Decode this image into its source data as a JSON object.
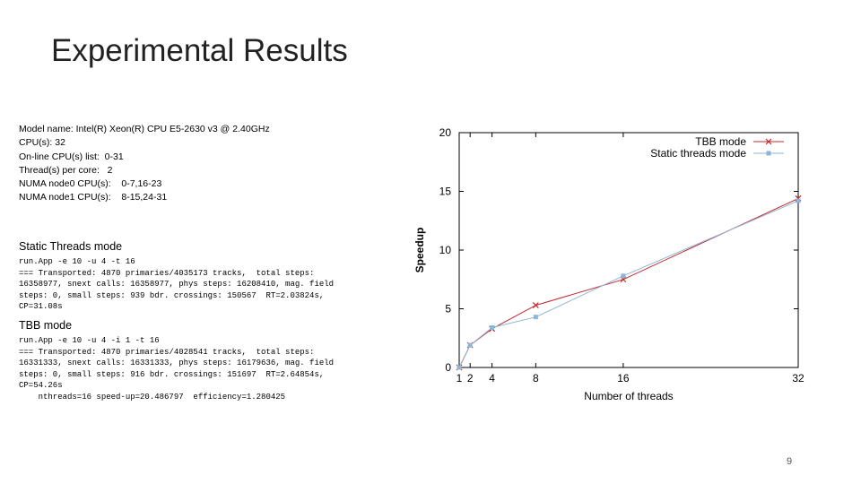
{
  "slide": {
    "title": "Experimental Results",
    "page_number": "9"
  },
  "specs": [
    "Model name: Intel(R) Xeon(R) CPU E5-2630 v3 @ 2.40GHz",
    "CPU(s): 32",
    "On-line CPU(s) list:  0-31",
    "Thread(s) per core:   2",
    "NUMA node0 CPU(s):    0-7,16-23",
    "NUMA node1 CPU(s):    8-15,24-31"
  ],
  "static_mode": {
    "heading": "Static Threads mode",
    "lines": [
      "run.App -e 10 -u 4 -t 16",
      "=== Transported: 4870 primaries/4035173 tracks,  total steps:",
      "16358977, snext calls: 16358977, phys steps: 16208410, mag. field",
      "steps: 0, small steps: 939 bdr. crossings: 150567  RT=2.03824s,",
      "CP=31.08s"
    ]
  },
  "tbb_mode": {
    "heading": "TBB mode",
    "lines": [
      "run.App -e 10 -u 4 -i 1 -t 16",
      "=== Transported: 4870 primaries/4028541 tracks,  total steps:",
      "16331333, snext calls: 16331333, phys steps: 16179636, mag. field",
      "steps: 0, small steps: 916 bdr. crossings: 151697  RT=2.64854s,",
      "CP=54.26s",
      "    nthreads=16 speed-up=20.486797  efficiency=1.280425"
    ]
  },
  "chart_data": {
    "type": "line",
    "title": "",
    "xlabel": "Number of threads",
    "ylabel": "Speedup",
    "xlim": [
      1,
      32
    ],
    "ylim": [
      0,
      20
    ],
    "x_ticks": [
      1,
      2,
      4,
      8,
      16,
      32
    ],
    "y_ticks": [
      0,
      5,
      10,
      15,
      20
    ],
    "legend_position": "top-right",
    "series": [
      {
        "name": "TBB mode",
        "color": "#c0282d",
        "marker": "x",
        "x": [
          1,
          2,
          4,
          8,
          16,
          32
        ],
        "y": [
          0.0,
          1.9,
          3.3,
          5.3,
          7.5,
          14.4
        ]
      },
      {
        "name": "Static threads mode",
        "color": "#8fb5d6",
        "marker": "square",
        "x": [
          1,
          2,
          4,
          8,
          16,
          32
        ],
        "y": [
          0.0,
          1.9,
          3.4,
          4.3,
          7.8,
          14.2
        ]
      }
    ]
  }
}
